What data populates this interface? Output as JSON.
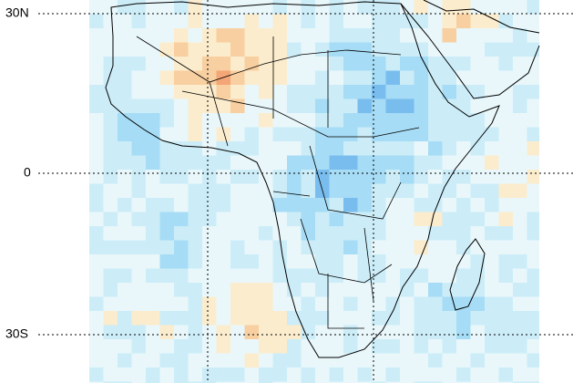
{
  "map": {
    "lat_labels": [
      "30N",
      "0",
      "30S"
    ]
  }
}
